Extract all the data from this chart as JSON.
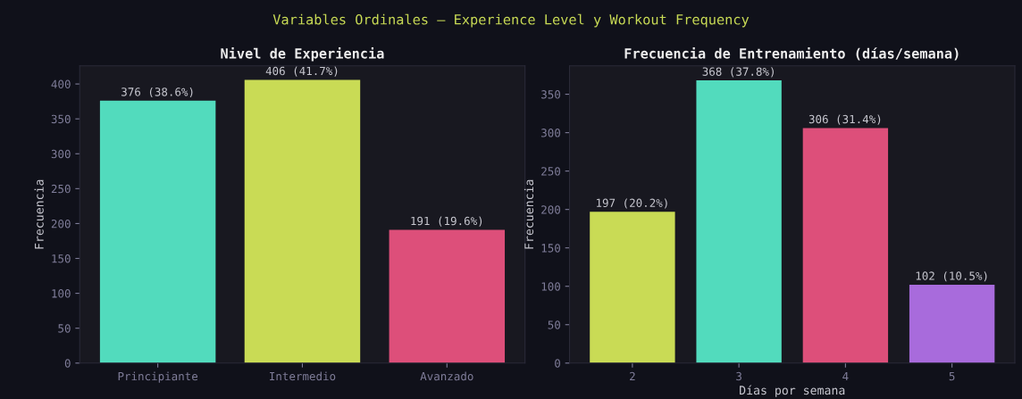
{
  "chart_data": [
    {
      "type": "bar",
      "title": "Nivel de Experiencia",
      "ylabel": "Frecuencia",
      "annotations": [
        "Variables Ordinales — Experience Level y Workout Frequency"
      ],
      "categories": [
        "Principiante",
        "Intermedio",
        "Avanzado"
      ],
      "values": [
        376,
        406,
        191
      ],
      "colors": [
        "#52dbbd",
        "#c9db55",
        "#dd4f7a"
      ],
      "value_labels": [
        "376 (38.6%)",
        "406 (41.7%)",
        "191 (19.6%)"
      ],
      "ylim": [
        0,
        426
      ],
      "yticks": [
        0,
        50,
        100,
        150,
        200,
        250,
        300,
        350,
        400
      ],
      "grid": false
    },
    {
      "type": "bar",
      "title": "Frecuencia de Entrenamiento (días/semana)",
      "ylabel": "Frecuencia",
      "xlabel": "Días por semana",
      "categories": [
        "2",
        "3",
        "4",
        "5"
      ],
      "values": [
        197,
        368,
        306,
        102
      ],
      "colors": [
        "#c9db55",
        "#52dbbd",
        "#dd4f7a",
        "#a86bdc"
      ],
      "value_labels": [
        "197 (20.2%)",
        "368 (37.8%)",
        "306 (31.4%)",
        "102 (10.5%)"
      ],
      "ylim": [
        0,
        387
      ],
      "yticks": [
        0,
        50,
        100,
        150,
        200,
        250,
        300,
        350
      ],
      "grid": false
    }
  ]
}
